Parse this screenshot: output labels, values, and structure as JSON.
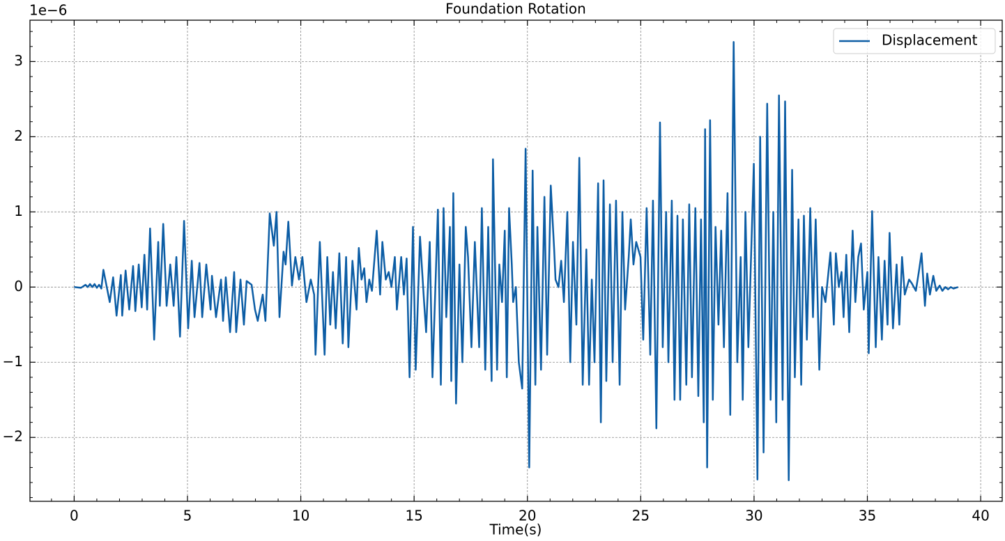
{
  "chart_data": {
    "type": "line",
    "title": "Foundation Rotation",
    "x_label": "Time(s)",
    "y_offset_text": "1e−6",
    "x": [
      0,
      0.3,
      0.5,
      0.6,
      0.7,
      0.8,
      0.9,
      1.0,
      1.1,
      1.2,
      1.29,
      1.57,
      1.72,
      1.87,
      2.06,
      2.12,
      2.27,
      2.43,
      2.6,
      2.7,
      2.85,
      2.98,
      3.1,
      3.22,
      3.35,
      3.53,
      3.71,
      3.78,
      3.93,
      4.08,
      4.24,
      4.39,
      4.51,
      4.67,
      4.85,
      5.03,
      5.19,
      5.31,
      5.53,
      5.65,
      5.83,
      6.02,
      6.08,
      6.26,
      6.48,
      6.57,
      6.69,
      6.88,
      7.06,
      7.15,
      7.34,
      7.49,
      7.61,
      7.83,
      7.98,
      8.1,
      8.32,
      8.44,
      8.63,
      8.81,
      8.93,
      9.06,
      9.24,
      9.33,
      9.45,
      9.61,
      9.76,
      9.92,
      10.07,
      10.25,
      10.44,
      10.59,
      10.65,
      10.84,
      11.05,
      11.17,
      11.3,
      11.42,
      11.54,
      11.7,
      11.85,
      12.0,
      12.1,
      12.28,
      12.46,
      12.56,
      12.68,
      12.8,
      12.9,
      13.02,
      13.14,
      13.35,
      13.5,
      13.6,
      13.75,
      13.88,
      14.0,
      14.15,
      14.24,
      14.43,
      14.55,
      14.67,
      14.8,
      14.95,
      15.07,
      15.26,
      15.44,
      15.53,
      15.69,
      15.81,
      16.05,
      16.18,
      16.3,
      16.42,
      16.58,
      16.64,
      16.73,
      16.85,
      17.0,
      17.13,
      17.28,
      17.38,
      17.53,
      17.68,
      17.87,
      17.99,
      18.14,
      18.27,
      18.42,
      18.48,
      18.66,
      18.76,
      18.88,
      19.0,
      19.09,
      19.19,
      19.31,
      19.37,
      19.49,
      19.62,
      19.77,
      19.92,
      20.08,
      20.23,
      20.35,
      20.44,
      20.6,
      20.75,
      20.87,
      21.03,
      21.18,
      21.24,
      21.37,
      21.49,
      21.61,
      21.76,
      21.89,
      22.01,
      22.16,
      22.29,
      22.44,
      22.6,
      22.72,
      22.84,
      22.96,
      23.12,
      23.24,
      23.36,
      23.48,
      23.64,
      23.76,
      23.91,
      24.07,
      24.19,
      24.31,
      24.47,
      24.56,
      24.68,
      24.8,
      24.99,
      25.11,
      25.26,
      25.42,
      25.54,
      25.69,
      25.85,
      25.97,
      26.12,
      26.22,
      26.37,
      26.49,
      26.62,
      26.74,
      26.86,
      27.01,
      27.14,
      27.26,
      27.41,
      27.54,
      27.66,
      27.78,
      27.84,
      27.93,
      28.06,
      28.18,
      28.3,
      28.43,
      28.55,
      28.67,
      28.83,
      28.95,
      29.1,
      29.26,
      29.41,
      29.5,
      29.62,
      29.75,
      29.99,
      30.15,
      30.27,
      30.42,
      30.58,
      30.73,
      30.85,
      30.98,
      31.1,
      31.26,
      31.37,
      31.53,
      31.68,
      31.8,
      31.96,
      32.08,
      32.2,
      32.33,
      32.48,
      32.6,
      32.72,
      32.88,
      33.0,
      33.15,
      33.37,
      33.52,
      33.61,
      33.74,
      33.86,
      33.95,
      34.07,
      34.2,
      34.35,
      34.47,
      34.6,
      34.72,
      34.84,
      35.0,
      35.06,
      35.21,
      35.37,
      35.49,
      35.64,
      35.76,
      35.89,
      35.98,
      36.13,
      36.29,
      36.41,
      36.53,
      36.65,
      36.84,
      36.96,
      37.14,
      37.27,
      37.39,
      37.54,
      37.64,
      37.76,
      37.91,
      38.04,
      38.19,
      38.31,
      38.44,
      38.56,
      38.68,
      38.8,
      39.0
    ],
    "series": [
      {
        "name": "Displacement",
        "color": "#0c5da5",
        "values": [
          0,
          -0.01,
          0.03,
          0,
          0.04,
          0,
          0.04,
          -0.01,
          0.03,
          -0.02,
          0.23,
          -0.2,
          0.13,
          -0.38,
          0.16,
          -0.38,
          0.22,
          -0.3,
          0.28,
          -0.32,
          0.3,
          -0.27,
          0.43,
          -0.3,
          0.78,
          -0.7,
          0.6,
          -0.25,
          0.84,
          -0.25,
          0.3,
          -0.25,
          0.4,
          -0.66,
          0.88,
          -0.55,
          0.35,
          -0.4,
          0.32,
          -0.4,
          0.3,
          -0.3,
          0.15,
          -0.4,
          0.1,
          -0.45,
          0.13,
          -0.6,
          0.2,
          -0.6,
          0.1,
          -0.5,
          0.08,
          0.03,
          -0.3,
          -0.45,
          -0.1,
          -0.45,
          0.98,
          0.55,
          1.0,
          -0.4,
          0.47,
          0.3,
          0.87,
          0.02,
          0.4,
          0.1,
          0.4,
          -0.2,
          0.1,
          -0.1,
          -0.9,
          0.6,
          -0.9,
          0.4,
          -0.5,
          0.2,
          -0.55,
          0.45,
          -0.75,
          0.4,
          -0.8,
          0.35,
          -0.3,
          0.52,
          0.1,
          0.25,
          -0.2,
          0.1,
          -0.05,
          0.75,
          -0.1,
          0.6,
          0.1,
          0.2,
          0,
          0.4,
          -0.3,
          0.4,
          -0.1,
          0.38,
          -1.2,
          0.8,
          -1.1,
          0.67,
          -0.2,
          -0.6,
          0.6,
          -1.2,
          1.03,
          -1.3,
          1.05,
          -0.4,
          0.8,
          -1.25,
          1.25,
          -1.55,
          0.3,
          -1.0,
          0.8,
          0.4,
          -0.8,
          0.6,
          -0.8,
          1.05,
          -1.1,
          0.8,
          -1.25,
          1.7,
          -1.1,
          0.3,
          -0.2,
          0.75,
          -1.2,
          1.05,
          0.3,
          -0.2,
          0,
          -1.0,
          -1.35,
          1.84,
          -2.4,
          1.55,
          -1.3,
          0.8,
          -1.1,
          1.2,
          -0.9,
          1.35,
          0.5,
          0.1,
          0,
          0.35,
          -0.2,
          1.0,
          -1.0,
          0.6,
          -0.5,
          1.72,
          -1.3,
          0.5,
          -1.3,
          0.1,
          -1.0,
          1.38,
          -1.8,
          1.42,
          -1.25,
          1.1,
          -1.0,
          1.15,
          -1.3,
          1.0,
          -0.3,
          0.4,
          0.9,
          0.3,
          0.6,
          0.4,
          -0.7,
          1.05,
          -0.9,
          1.15,
          -1.88,
          2.19,
          -0.8,
          1.0,
          -1.0,
          1.15,
          -1.5,
          0.95,
          -1.5,
          0.9,
          -1.3,
          1.1,
          -1.2,
          1.05,
          -1.45,
          0.9,
          -1.8,
          2.1,
          -2.4,
          2.22,
          -1.5,
          0.8,
          -0.5,
          0.75,
          -0.8,
          1.25,
          -1.7,
          3.26,
          -1.0,
          0.4,
          -1.5,
          1.0,
          -0.8,
          1.64,
          -2.56,
          2.0,
          -2.2,
          2.44,
          -1.5,
          1.0,
          -1.8,
          2.55,
          -1.5,
          2.47,
          -2.57,
          1.56,
          -1.2,
          0.9,
          -1.3,
          0.95,
          -0.7,
          1.05,
          -0.4,
          0.9,
          -1.1,
          0,
          -0.2,
          0.46,
          -0.5,
          0.45,
          0,
          0.2,
          -0.4,
          0.43,
          -0.6,
          0.75,
          -0.2,
          0.4,
          0.58,
          -0.3,
          0.2,
          -0.88,
          1.01,
          -0.8,
          0.4,
          -0.7,
          0.35,
          -0.5,
          0.72,
          -0.55,
          0.3,
          -0.5,
          0.4,
          -0.1,
          0.1,
          0.05,
          -0.05,
          0.2,
          0.45,
          -0.25,
          0.18,
          -0.1,
          0.15,
          -0.05,
          0.02,
          -0.05,
          0,
          -0.03,
          0,
          -0.02,
          0
        ]
      }
    ],
    "xlim": [
      -1.95,
      40.95
    ],
    "ylim": [
      -2.85,
      3.55
    ],
    "xticks": [
      0,
      5,
      10,
      15,
      20,
      25,
      30,
      35,
      40
    ],
    "yticks": [
      {
        "value": -2,
        "label": "−2"
      },
      {
        "value": -1,
        "label": "−1"
      },
      0,
      1,
      2,
      3
    ],
    "grid": true,
    "minor_ticks": true,
    "legend": "upper right"
  }
}
